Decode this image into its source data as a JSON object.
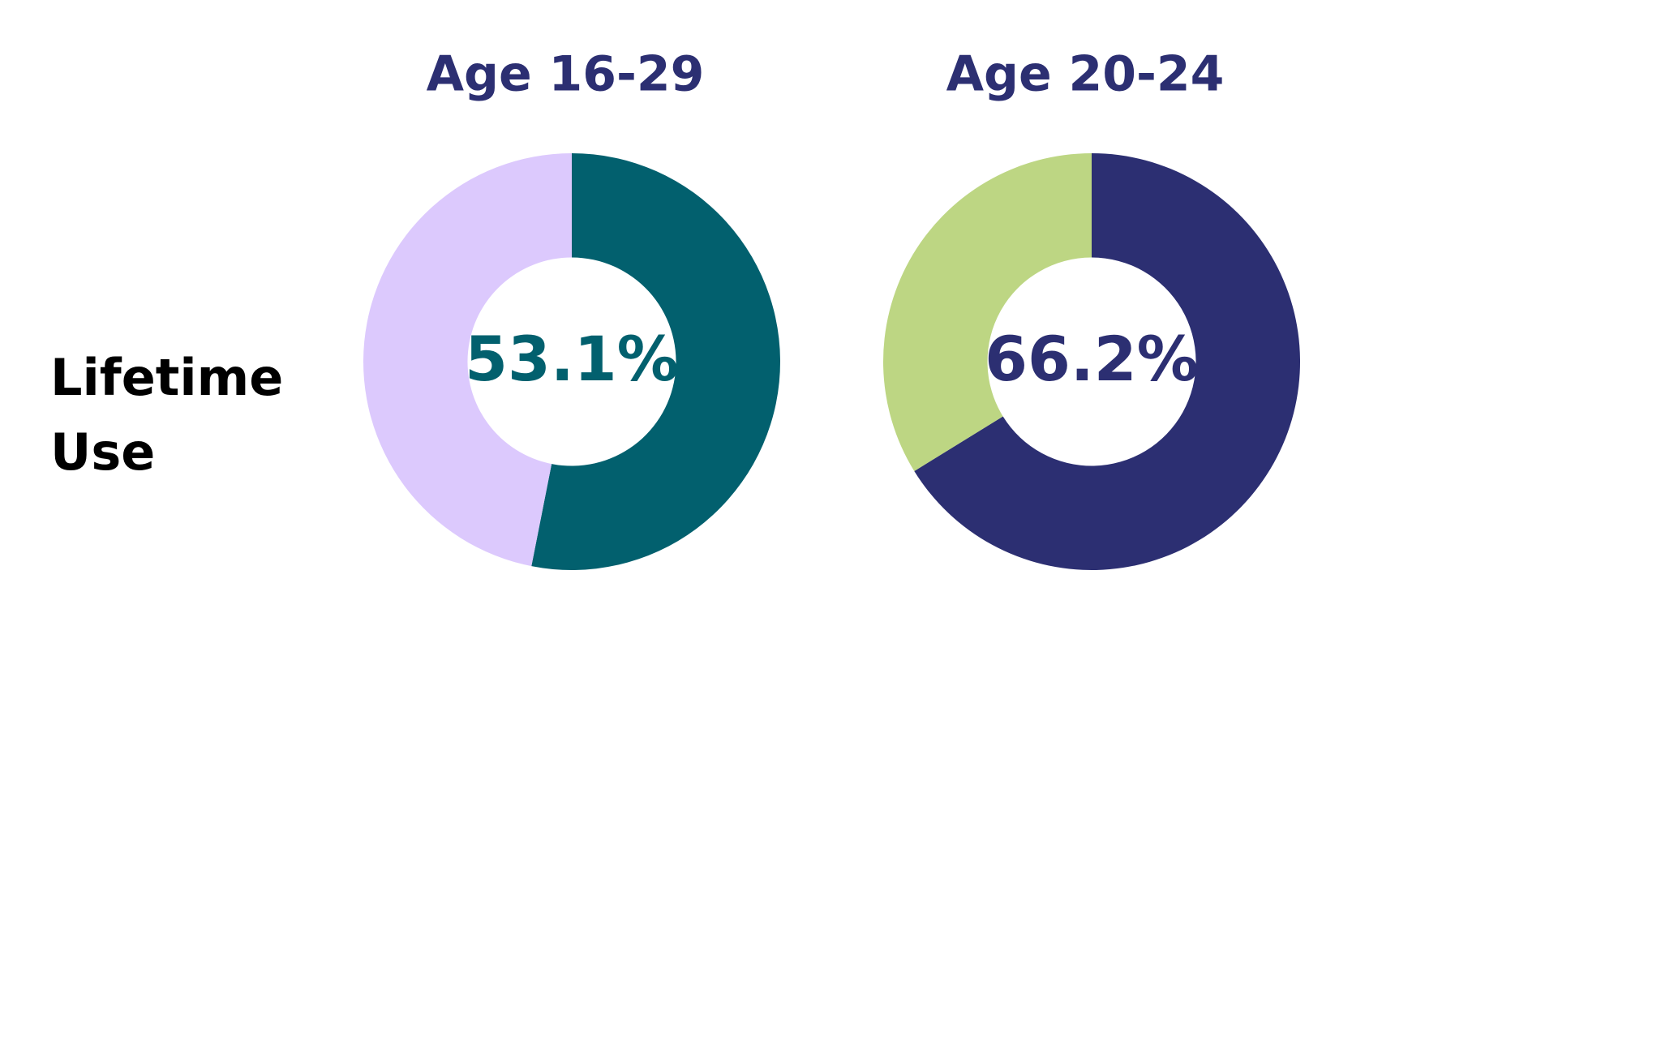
{
  "row_label": "Lifetime Use",
  "chart_data": [
    {
      "type": "pie",
      "title": "Age 16-29",
      "values": [
        53.1,
        46.9
      ],
      "value_labels": [
        "53.1%",
        null
      ],
      "colors": [
        "#02606e",
        "#dcc9fd"
      ],
      "hole": 0.5
    },
    {
      "type": "pie",
      "title": "Age 20-24",
      "values": [
        66.2,
        33.8
      ],
      "value_labels": [
        "66.2%",
        null
      ],
      "colors": [
        "#2c2f72",
        "#bdd683"
      ],
      "hole": 0.5
    }
  ]
}
